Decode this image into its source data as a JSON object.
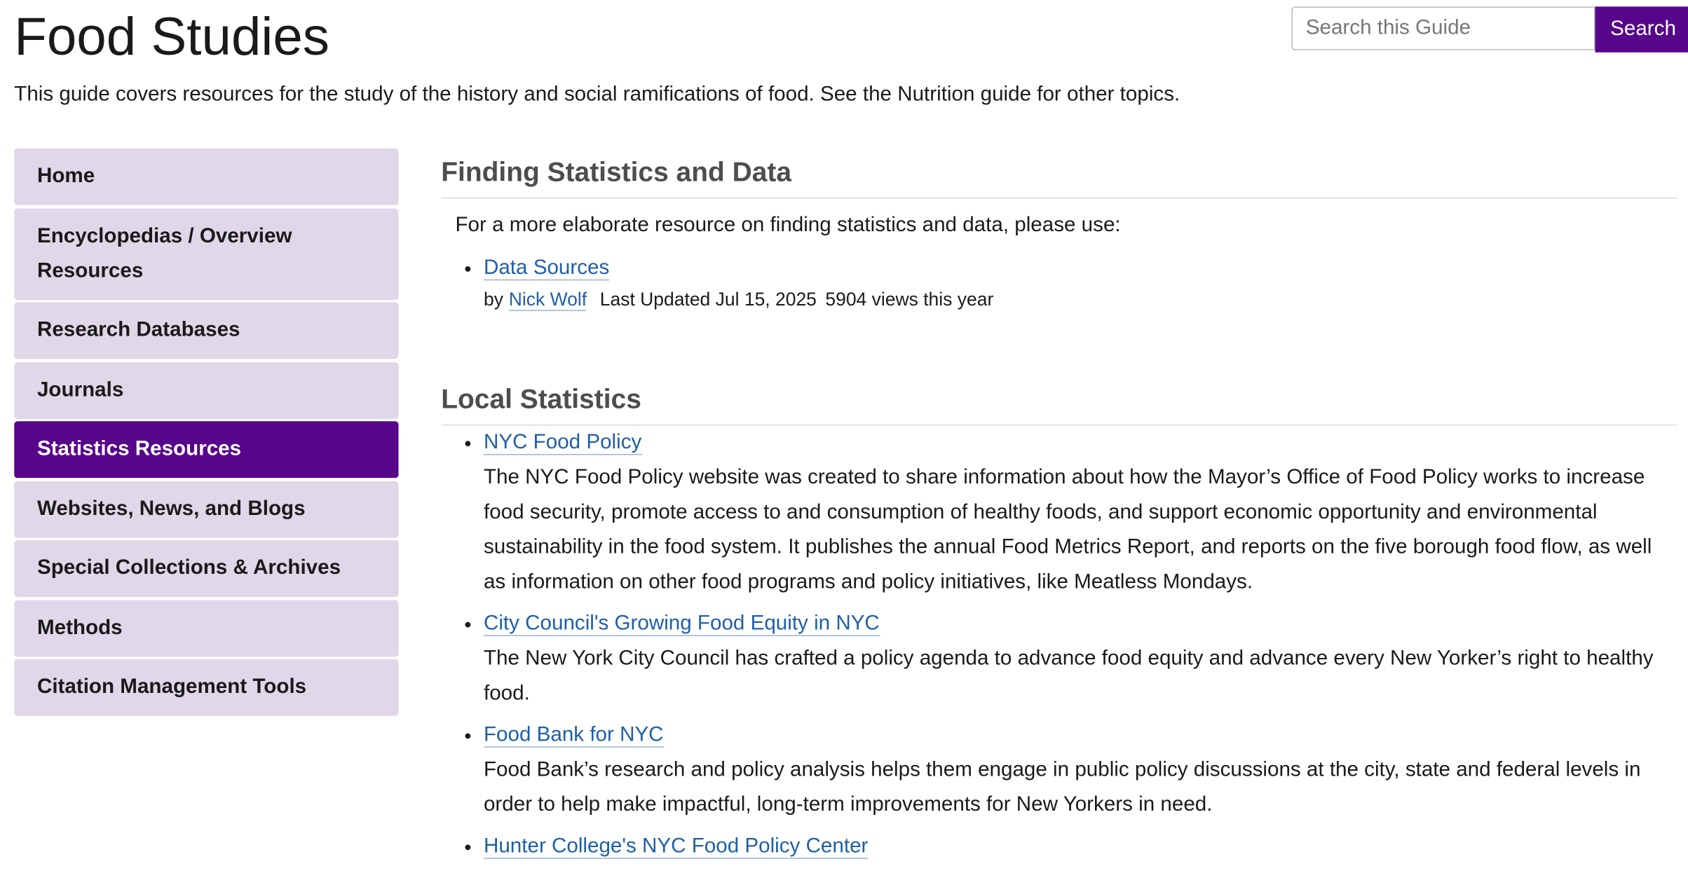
{
  "header": {
    "title": "Food Studies",
    "description": "This guide covers resources for the study of the history and social ramifications of food. See the Nutrition guide for other topics."
  },
  "search": {
    "placeholder": "Search this Guide",
    "button": "Search"
  },
  "nav": {
    "items": [
      {
        "label": "Home"
      },
      {
        "label": "Encyclopedias / Overview Resources"
      },
      {
        "label": "Research Databases"
      },
      {
        "label": "Journals"
      },
      {
        "label": "Statistics Resources",
        "active": true
      },
      {
        "label": "Websites, News, and Blogs"
      },
      {
        "label": "Special Collections & Archives"
      },
      {
        "label": "Methods"
      },
      {
        "label": "Citation Management Tools"
      }
    ]
  },
  "sections": [
    {
      "heading": "Finding Statistics and Data",
      "intro": "For a more elaborate resource on finding statistics and data, please use:",
      "links": [
        {
          "title": "Data Sources",
          "by": "by",
          "author": "Nick Wolf",
          "updated": "Last Updated Jul 15, 2025",
          "views": "5904 views this year"
        }
      ]
    },
    {
      "heading": "Local Statistics",
      "links": [
        {
          "title": "NYC Food Policy",
          "description": "The NYC Food Policy website was created to share information about how the Mayor’s Office of Food Policy works to increase food security, promote access to and consumption of healthy foods, and support economic opportunity and environmental sustainability in the food system. It publishes the annual Food Metrics Report, and reports on the five borough food flow, as well as information on other food programs and policy initiatives, like Meatless Mondays."
        },
        {
          "title": "City Council's Growing Food Equity in NYC",
          "description": "The New York City Council has crafted a policy agenda to advance food equity and advance every New Yorker’s right to healthy food."
        },
        {
          "title": "Food Bank for NYC",
          "description": "Food Bank’s research and policy analysis helps them engage in public policy discussions at the city, state and federal levels in order to help make impactful, long-term improvements for New Yorkers in need."
        },
        {
          "title": "Hunter College's NYC Food Policy Center"
        }
      ]
    }
  ]
}
